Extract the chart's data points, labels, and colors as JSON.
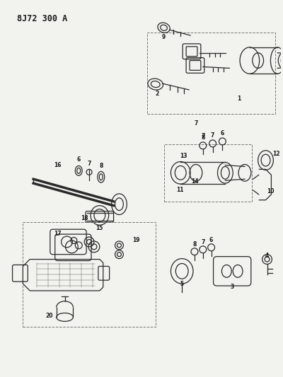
{
  "title": "8J72 300 A",
  "bg_color": "#f2f2ee",
  "line_color": "#2a2a2a",
  "dashed_box_color": "#777777",
  "label_color": "#1a1a1a",
  "title_fontsize": 8.5,
  "label_fontsize": 5.5,
  "lw": 0.9
}
